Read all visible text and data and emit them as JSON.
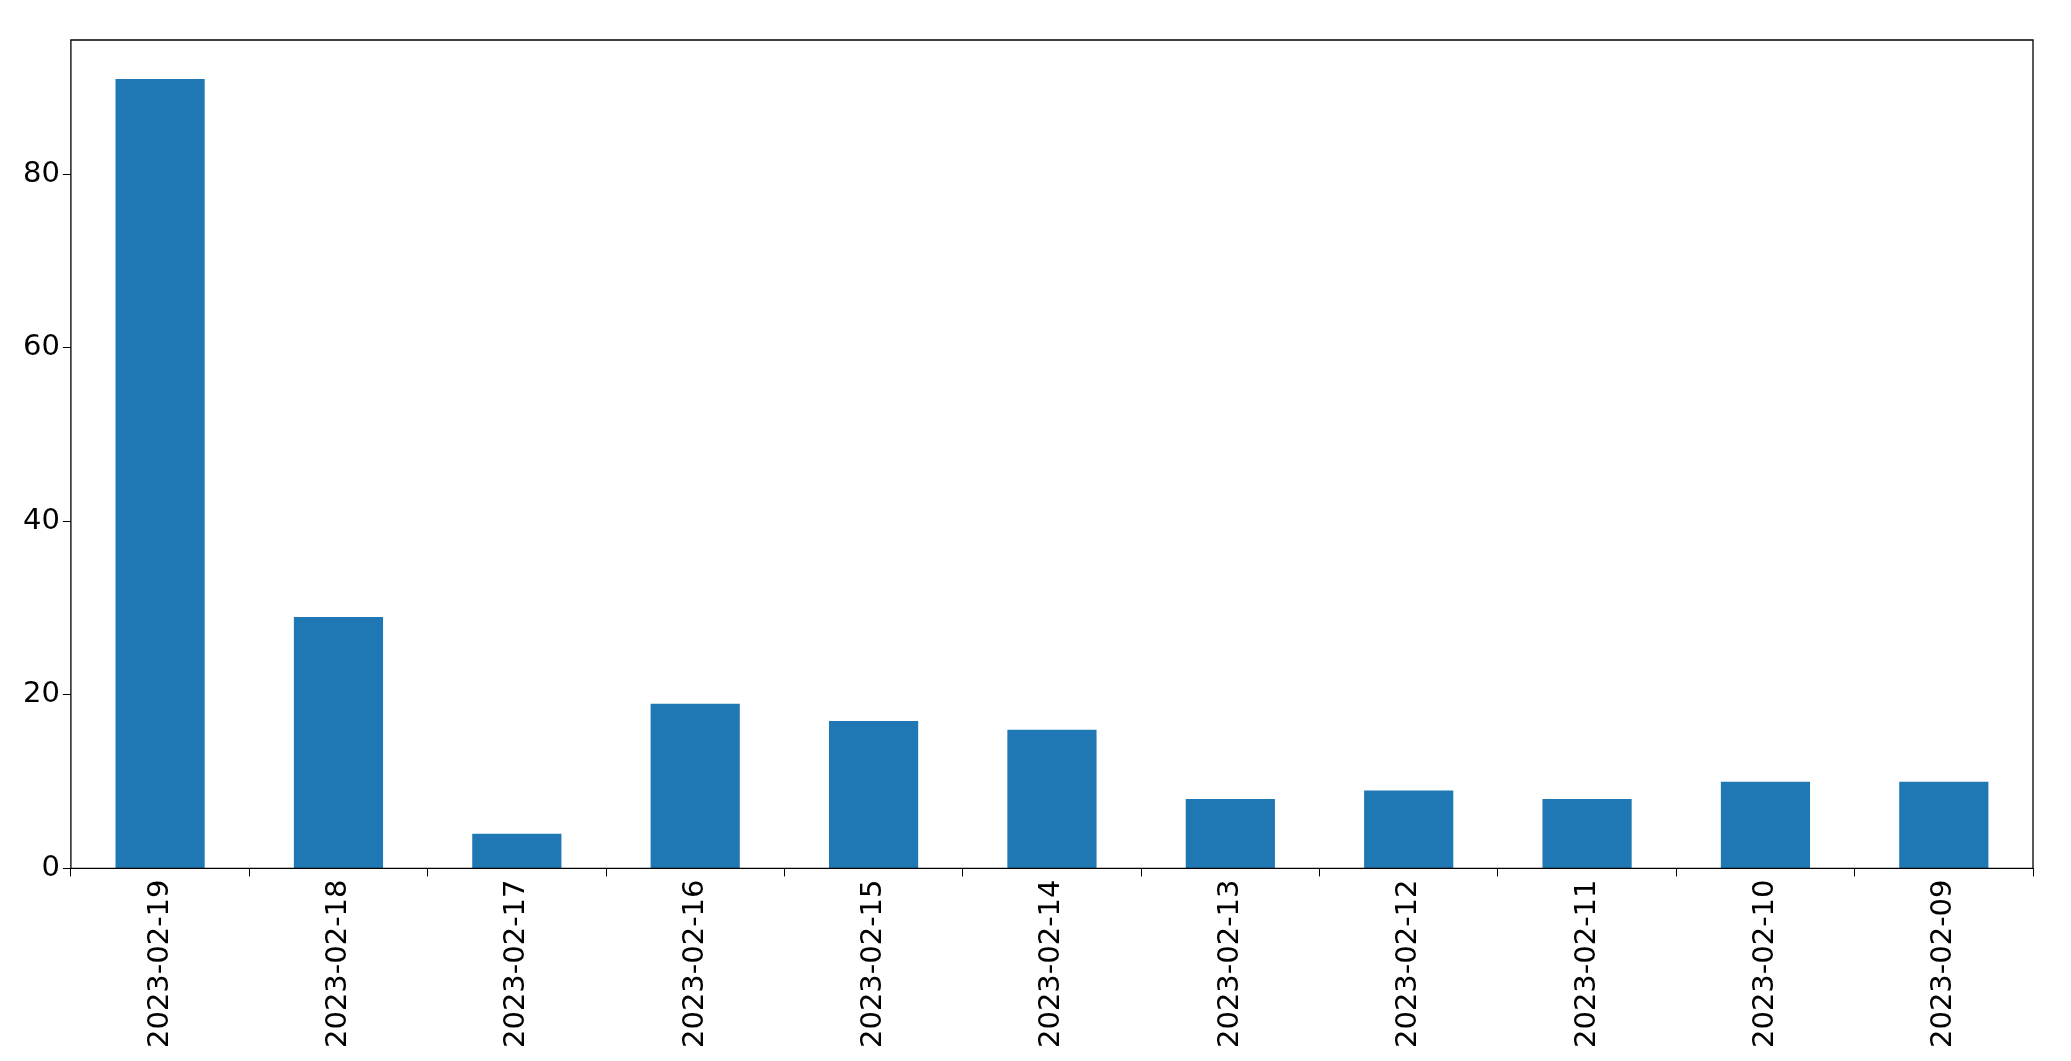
{
  "chart_data": {
    "type": "bar",
    "categories": [
      "2023-02-19",
      "2023-02-18",
      "2023-02-17",
      "2023-02-16",
      "2023-02-15",
      "2023-02-14",
      "2023-02-13",
      "2023-02-12",
      "2023-02-11",
      "2023-02-10",
      "2023-02-09"
    ],
    "values": [
      91,
      29,
      4,
      19,
      17,
      16,
      8,
      9,
      8,
      10,
      10
    ],
    "color": "#1f77b4",
    "ylim": [
      0,
      95.5
    ],
    "yticks": [
      0,
      20,
      40,
      60,
      80
    ],
    "grid": false,
    "legend": false
  }
}
